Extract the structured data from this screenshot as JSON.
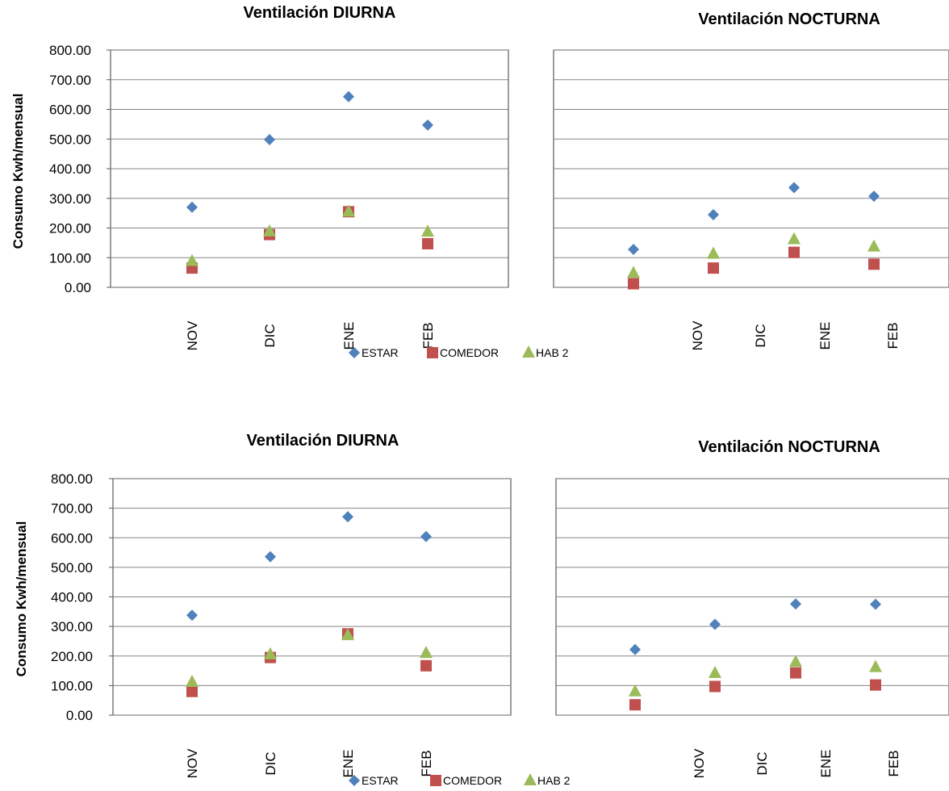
{
  "colors": {
    "estar": "#4F81BD",
    "comedor": "#C0504D",
    "hab2": "#9BBB59",
    "grid": "#868686",
    "axis": "#595959"
  },
  "y_tick_labels": [
    "0.00",
    "100.00",
    "200.00",
    "300.00",
    "400.00",
    "500.00",
    "600.00",
    "700.00",
    "800.00"
  ],
  "chart_data": [
    {
      "type": "scatter",
      "title": "Ventilación DIURNA",
      "ylabel": "Consumo Kwh/mensual",
      "xlabel": "",
      "categories": [
        "NOV",
        "DIC",
        "ENE",
        "FEB"
      ],
      "ylim": [
        0,
        800
      ],
      "grid": true,
      "legend": "bottom",
      "series": [
        {
          "name": "ESTAR",
          "marker": "diamond",
          "values": [
            270,
            498,
            643,
            547
          ]
        },
        {
          "name": "COMEDOR",
          "marker": "square",
          "values": [
            65,
            178,
            255,
            147
          ]
        },
        {
          "name": "HAB 2",
          "marker": "triangle",
          "values": [
            88,
            188,
            255,
            187
          ]
        }
      ]
    },
    {
      "type": "scatter",
      "title": "Ventilación NOCTURNA",
      "ylabel": "",
      "xlabel": "",
      "categories": [
        "NOV",
        "DIC",
        "ENE",
        "FEB"
      ],
      "ylim": [
        0,
        800
      ],
      "grid": true,
      "legend": "bottom",
      "series": [
        {
          "name": "ESTAR",
          "marker": "diamond",
          "values": [
            128,
            245,
            336,
            307
          ]
        },
        {
          "name": "COMEDOR",
          "marker": "square",
          "values": [
            12,
            65,
            118,
            78
          ]
        },
        {
          "name": "HAB 2",
          "marker": "triangle",
          "values": [
            48,
            113,
            162,
            137
          ]
        }
      ]
    },
    {
      "type": "scatter",
      "title": "Ventilación DIURNA",
      "ylabel": "Consumo Kwh/mensual",
      "xlabel": "",
      "categories": [
        "NOV",
        "DIC",
        "ENE",
        "FEB"
      ],
      "ylim": [
        0,
        800
      ],
      "grid": true,
      "legend": "bottom",
      "series": [
        {
          "name": "ESTAR",
          "marker": "diamond",
          "values": [
            338,
            536,
            671,
            604
          ]
        },
        {
          "name": "COMEDOR",
          "marker": "square",
          "values": [
            80,
            195,
            275,
            167
          ]
        },
        {
          "name": "HAB 2",
          "marker": "triangle",
          "values": [
            112,
            205,
            270,
            210
          ]
        }
      ]
    },
    {
      "type": "scatter",
      "title": "Ventilación NOCTURNA",
      "ylabel": "",
      "xlabel": "",
      "categories": [
        "NOV",
        "DIC",
        "ENE",
        "FEB"
      ],
      "ylim": [
        0,
        800
      ],
      "grid": true,
      "legend": "bottom",
      "series": [
        {
          "name": "ESTAR",
          "marker": "diamond",
          "values": [
            222,
            307,
            376,
            375
          ]
        },
        {
          "name": "COMEDOR",
          "marker": "square",
          "values": [
            35,
            97,
            143,
            102
          ]
        },
        {
          "name": "HAB 2",
          "marker": "triangle",
          "values": [
            80,
            142,
            180,
            162
          ]
        }
      ]
    }
  ]
}
